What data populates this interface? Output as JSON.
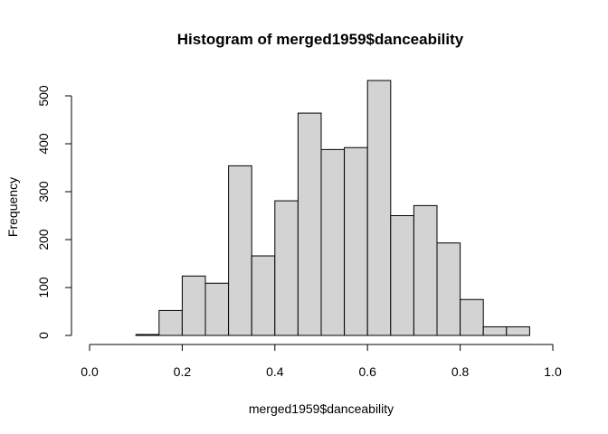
{
  "chart_data": {
    "type": "bar",
    "title": "Histogram of merged1959$danceability",
    "xlabel": "merged1959$danceability",
    "ylabel": "Frequency",
    "bins": [
      {
        "start": 0.0,
        "end": 0.05,
        "count": 0
      },
      {
        "start": 0.05,
        "end": 0.1,
        "count": 0
      },
      {
        "start": 0.1,
        "end": 0.15,
        "count": 2
      },
      {
        "start": 0.15,
        "end": 0.2,
        "count": 52
      },
      {
        "start": 0.2,
        "end": 0.25,
        "count": 124
      },
      {
        "start": 0.25,
        "end": 0.3,
        "count": 109
      },
      {
        "start": 0.3,
        "end": 0.35,
        "count": 354
      },
      {
        "start": 0.35,
        "end": 0.4,
        "count": 166
      },
      {
        "start": 0.4,
        "end": 0.45,
        "count": 281
      },
      {
        "start": 0.45,
        "end": 0.5,
        "count": 464
      },
      {
        "start": 0.5,
        "end": 0.55,
        "count": 388
      },
      {
        "start": 0.55,
        "end": 0.6,
        "count": 392
      },
      {
        "start": 0.6,
        "end": 0.65,
        "count": 532
      },
      {
        "start": 0.65,
        "end": 0.7,
        "count": 250
      },
      {
        "start": 0.7,
        "end": 0.75,
        "count": 271
      },
      {
        "start": 0.75,
        "end": 0.8,
        "count": 193
      },
      {
        "start": 0.8,
        "end": 0.85,
        "count": 75
      },
      {
        "start": 0.85,
        "end": 0.9,
        "count": 18
      },
      {
        "start": 0.9,
        "end": 0.95,
        "count": 18
      }
    ],
    "xlim": [
      0.0,
      1.0
    ],
    "ylim": [
      0,
      500
    ],
    "xticks": [
      "0.0",
      "0.2",
      "0.4",
      "0.6",
      "0.8",
      "1.0"
    ],
    "yticks": [
      "0",
      "100",
      "200",
      "300",
      "400",
      "500"
    ],
    "bar_fill": "#d3d3d3",
    "bar_stroke": "#000000",
    "grid": false
  }
}
